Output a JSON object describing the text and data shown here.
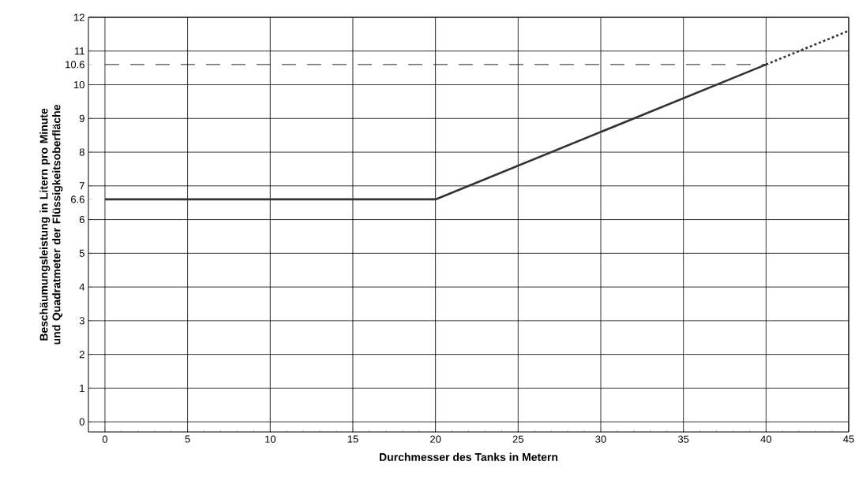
{
  "chart_data": {
    "type": "line",
    "xlabel": "Durchmesser des Tanks in Metern",
    "ylabel": "Beschäumungsleistung in Litern pro Minute und Quadratmeter der Flüssigkeitsoberfläche",
    "series": [
      {
        "x": [
          0,
          20,
          40
        ],
        "values": [
          6.6,
          6.6,
          10.6
        ],
        "color": "#333333",
        "line_style": "solid"
      },
      {
        "x": [
          40,
          45
        ],
        "values": [
          10.6,
          11.6
        ],
        "color": "#333333",
        "line_style": "dotted"
      },
      {
        "x": [
          0,
          40
        ],
        "values": [
          10.6,
          10.6
        ],
        "color": "#222222",
        "line_style": "dashed"
      }
    ],
    "xlim": [
      -1,
      45
    ],
    "ylim": [
      -0.3,
      12
    ],
    "xticks": [
      0,
      5,
      10,
      15,
      20,
      25,
      30,
      35,
      40,
      45
    ],
    "yticks": [
      0,
      1,
      2,
      3,
      4,
      5,
      6,
      6.6,
      7,
      8,
      9,
      10,
      10.6,
      11,
      12
    ],
    "grid": true,
    "marker": "none"
  }
}
